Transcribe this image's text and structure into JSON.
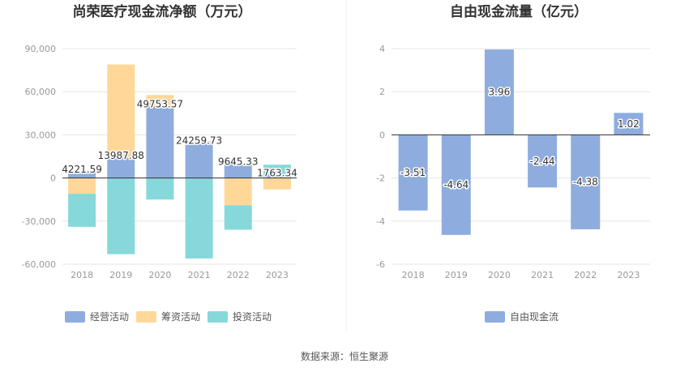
{
  "source_label": "数据来源：恒生聚源",
  "chart_data": [
    {
      "type": "bar",
      "stacked": true,
      "title": "尚荣医疗现金流净额（万元）",
      "categories": [
        "2018",
        "2019",
        "2020",
        "2021",
        "2022",
        "2023"
      ],
      "ylim": [
        -60000,
        90000
      ],
      "yticks": [
        -60000,
        -30000,
        0,
        30000,
        60000,
        90000
      ],
      "ytick_labels": [
        "-60,000",
        "-30,000",
        "0",
        "30,000",
        "60,000",
        "90,000"
      ],
      "grid": true,
      "legend_position": "bottom",
      "series": [
        {
          "name": "经营活动",
          "color": "#8eadde",
          "values": [
            4221.59,
            13987.88,
            49753.57,
            24259.73,
            9645.33,
            1763.34
          ]
        },
        {
          "name": "筹资活动",
          "color": "#ffd899",
          "values": [
            -11000,
            65000,
            8000,
            1500,
            -19000,
            -8000
          ]
        },
        {
          "name": "投资活动",
          "color": "#86d8da",
          "values": [
            -23000,
            -53000,
            -15000,
            -56000,
            -17000,
            7500
          ]
        }
      ],
      "data_labels": [
        "4221.59",
        "13987.88",
        "49753.57",
        "24259.73",
        "9645.33",
        "1763.34"
      ]
    },
    {
      "type": "bar",
      "title": "自由现金流量（亿元）",
      "categories": [
        "2018",
        "2019",
        "2020",
        "2021",
        "2022",
        "2023"
      ],
      "ylim": [
        -6,
        4
      ],
      "yticks": [
        -6,
        -4,
        -2,
        0,
        2,
        4
      ],
      "ytick_labels": [
        "-6",
        "-4",
        "-2",
        "0",
        "2",
        "4"
      ],
      "grid": true,
      "legend_position": "bottom",
      "series": [
        {
          "name": "自由现金流",
          "color": "#8eadde",
          "values": [
            -3.51,
            -4.64,
            3.96,
            -2.44,
            -4.38,
            1.02
          ]
        }
      ],
      "data_labels": [
        "-3.51",
        "-4.64",
        "3.96",
        "-2.44",
        "-4.38",
        "1.02"
      ]
    }
  ]
}
